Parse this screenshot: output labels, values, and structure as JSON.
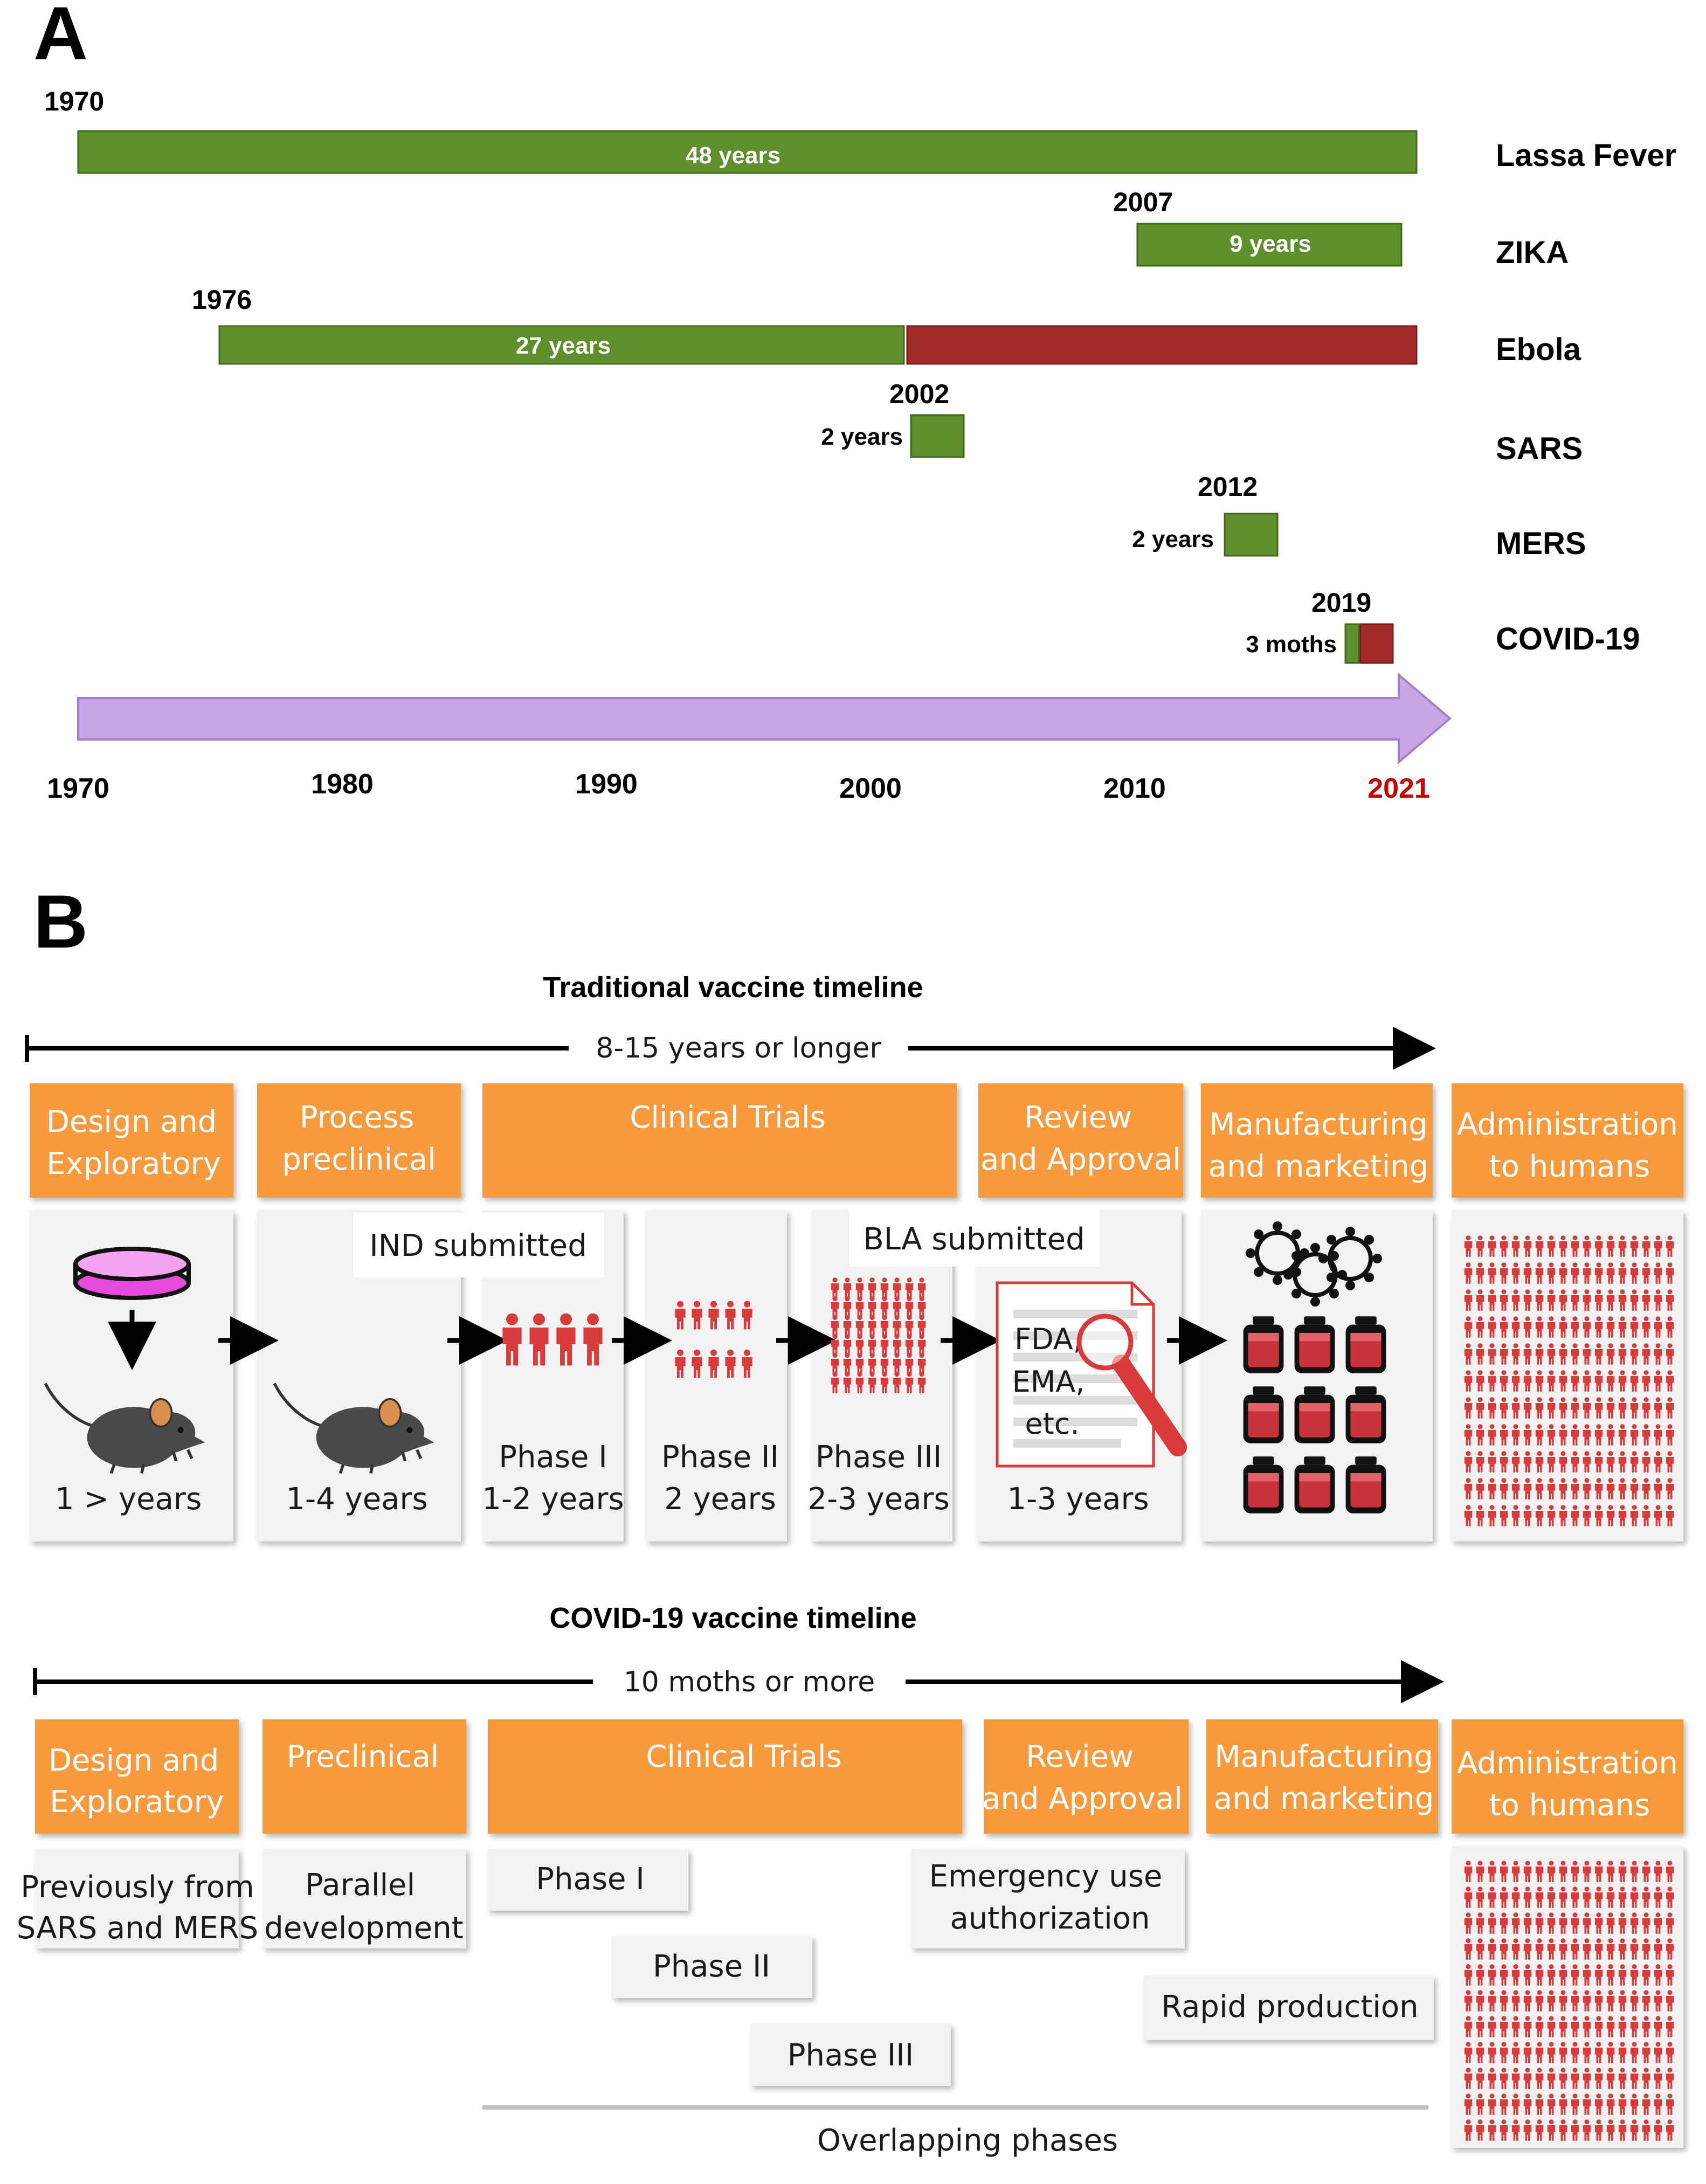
{
  "panel_a": {
    "label": "A",
    "axis": {
      "ticks": [
        "1970",
        "1980",
        "1990",
        "2000",
        "2010",
        "2021"
      ],
      "highlight_color": "#cc0000"
    },
    "rows": [
      {
        "name": "Lassa Fever",
        "start_label": "1970",
        "duration_label": "48 years"
      },
      {
        "name": "ZIKA",
        "start_label": "2007",
        "duration_label": "9 years"
      },
      {
        "name": "Ebola",
        "start_label": "1976",
        "duration_label": "27 years"
      },
      {
        "name": "SARS",
        "start_label": "2002",
        "duration_label": "2 years"
      },
      {
        "name": "MERS",
        "start_label": "2012",
        "duration_label": "2 years"
      },
      {
        "name": "COVID-19",
        "start_label": "2019",
        "duration_label": "3 moths"
      }
    ],
    "colors": {
      "green": "#5f8f2d",
      "red": "#a52a2a",
      "purple": "#c9a4e6"
    }
  },
  "panel_b": {
    "label": "B",
    "traditional": {
      "title": "Traditional vaccine timeline",
      "span": "8-15 years or longer",
      "stages": [
        "Design and Exploratory",
        "Process preclinical",
        "Clinical Trials",
        "Review and Approval",
        "Manufacturing and marketing",
        "Administration to humans"
      ],
      "notes": {
        "ind": "IND submitted",
        "bla": "BLA submitted"
      },
      "durations": {
        "design": "1  > years",
        "preclinical": "1-4 years",
        "phase1_name": "Phase I",
        "phase1": "1-2 years",
        "phase2_name": "Phase II",
        "phase2": "2 years",
        "phase3_name": "Phase III",
        "phase3": "2-3 years",
        "review": "1-3 years"
      },
      "agencies": [
        "FDA,",
        "EMA,",
        "etc."
      ]
    },
    "covid": {
      "title": "COVID-19 vaccine timeline",
      "span": "10 moths or more",
      "stages": [
        "Design and Exploratory",
        "Preclinical",
        "Clinical Trials",
        "Review and Approval",
        "Manufacturing and marketing",
        "Administration to humans"
      ],
      "design_note": "Previously from SARS and MERS",
      "preclinical_note": "Parallel development",
      "phases": [
        "Phase I",
        "Phase II",
        "Phase III"
      ],
      "eua": "Emergency use authorization",
      "rapid": "Rapid production",
      "overlap": "Overlapping phases"
    },
    "colors": {
      "orange": "#f79a3e",
      "grey_box": "#f2f2f2",
      "people_red": "#d93a3a"
    }
  }
}
